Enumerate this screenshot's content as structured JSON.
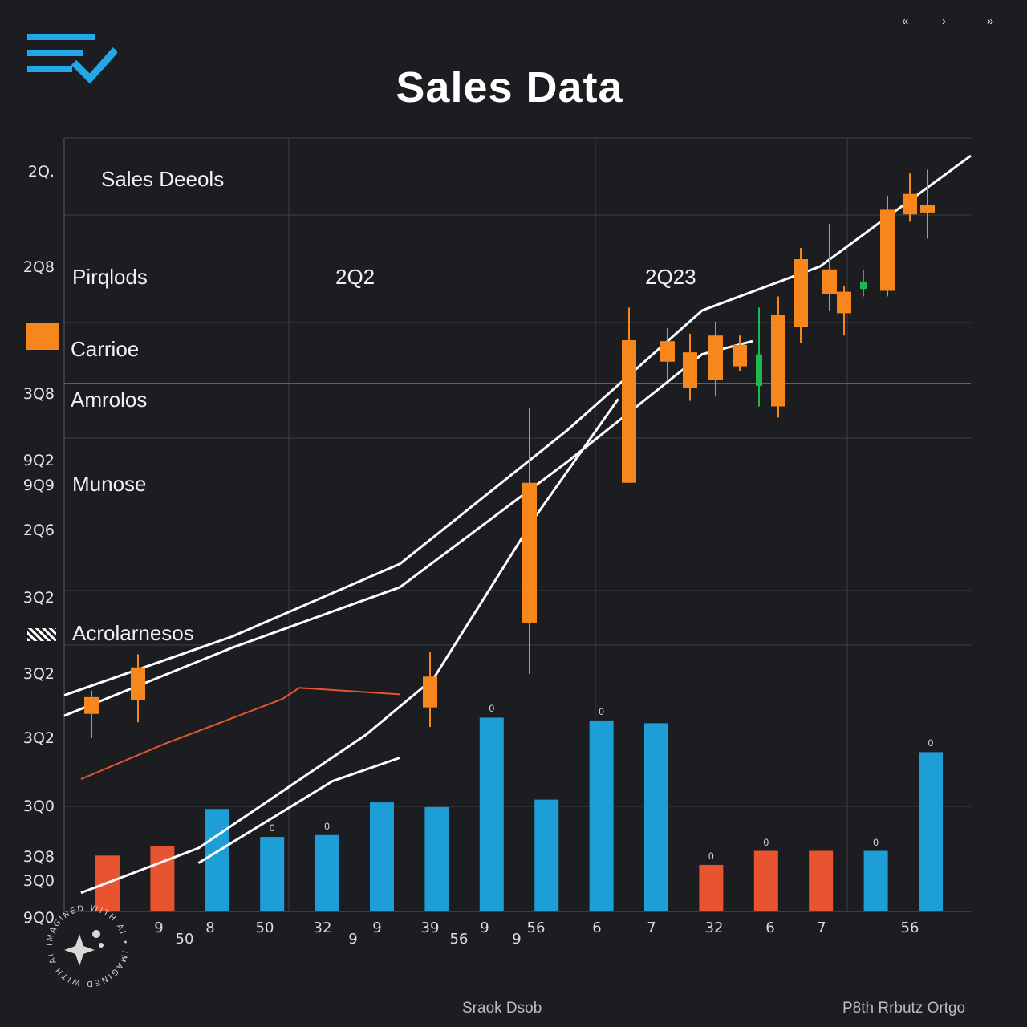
{
  "title": "Sales Data",
  "header_nav": {
    "left": "«",
    "center": "›",
    "right": "»"
  },
  "colors": {
    "background": "#1b1d20",
    "bar_blue": "#1e9ed6",
    "bar_red": "#e8542f",
    "candle_orange": "#f7861c",
    "candle_green": "#1fb84a",
    "line_white": "#ffffff",
    "line_red": "#e8542f",
    "logo_blue": "#22a7e8"
  },
  "table": {
    "rows": [
      {
        "label": "Sales Deeols"
      },
      {
        "label": "Pirqlods"
      },
      {
        "label": "Carrioe",
        "icon": "orange-swatch-icon"
      },
      {
        "label": "Amrolos"
      },
      {
        "label": "Munose"
      },
      {
        "label": "Acrolarnesos",
        "icon": "striped-swatch-icon"
      }
    ],
    "years": [
      "2Q2",
      "2Q23"
    ]
  },
  "y_ticks": [
    "2Q.",
    "2Q8",
    "3Q8",
    "9Q2",
    "9Q9",
    "2Q6",
    "3Q2",
    "3Q2",
    "3Q2",
    "3Q0",
    "3Q8",
    "3Q0",
    "9Q0"
  ],
  "footer": {
    "left": "Sraok Dsob",
    "right": "P8th Rrbutz Ortgo"
  },
  "watermark_text": "IMAGINED WITH AI",
  "chart_data": {
    "type": "bar",
    "title": "Sales Data",
    "xlabel": "",
    "ylabel": "",
    "x_tick_labels": [
      "9",
      "8",
      "50",
      "32",
      "9",
      "39",
      "9",
      "56",
      "6",
      "7",
      "32",
      "6",
      "7",
      "50",
      "9",
      "56",
      "9",
      "56"
    ],
    "bars": {
      "values": [
        60,
        70,
        110,
        80,
        82,
        117,
        112,
        208,
        120,
        205,
        202,
        50,
        65,
        65,
        65,
        171
      ],
      "colors": [
        "red",
        "red",
        "blue",
        "blue",
        "blue",
        "blue",
        "blue",
        "blue",
        "blue",
        "blue",
        "blue",
        "red",
        "red",
        "red",
        "blue",
        "blue"
      ],
      "top_labels": [
        "",
        "",
        "",
        "0",
        "0",
        "",
        "",
        "0",
        "",
        "0",
        "",
        "0",
        "0",
        "",
        "0",
        "0"
      ]
    },
    "candlesticks": [
      {
        "open": 230,
        "close": 212,
        "high": 237,
        "low": 186
      },
      {
        "open": 262,
        "close": 227,
        "high": 276,
        "low": 203
      },
      {
        "open": 252,
        "close": 219,
        "high": 278,
        "low": 198
      },
      {
        "open": 460,
        "close": 310,
        "high": 540,
        "low": 255
      },
      {
        "open": 613,
        "close": 460,
        "high": 648,
        "low": 460
      },
      {
        "open": 612,
        "close": 590,
        "high": 626,
        "low": 571
      },
      {
        "open": 600,
        "close": 562,
        "high": 620,
        "low": 548
      },
      {
        "open": 618,
        "close": 570,
        "high": 633,
        "low": 553
      },
      {
        "open": 608,
        "close": 585,
        "high": 618,
        "low": 580
      },
      {
        "open": 598,
        "close": 564,
        "high": 648,
        "low": 542
      },
      {
        "open": 640,
        "close": 542,
        "high": 660,
        "low": 530
      },
      {
        "open": 700,
        "close": 627,
        "high": 712,
        "low": 610
      },
      {
        "open": 689,
        "close": 663,
        "high": 738,
        "low": 645
      },
      {
        "open": 665,
        "close": 642,
        "high": 671,
        "low": 618
      },
      {
        "open": 676,
        "close": 668,
        "high": 688,
        "low": 660
      },
      {
        "open": 753,
        "close": 666,
        "high": 768,
        "low": 660
      },
      {
        "open": 770,
        "close": 748,
        "high": 792,
        "low": 740
      },
      {
        "open": 750,
        "close": 758,
        "high": 796,
        "low": 722
      }
    ],
    "trend_lines": [
      {
        "name": "",
        "color": "white",
        "points": [
          [
            0,
            232
          ],
          [
            10,
            295
          ],
          [
            20,
            373
          ],
          [
            30,
            517
          ],
          [
            38,
            645
          ],
          [
            45,
            692
          ],
          [
            54,
            811
          ]
        ]
      },
      {
        "name": "",
        "color": "white",
        "points": [
          [
            0,
            210
          ],
          [
            10,
            283
          ],
          [
            20,
            348
          ],
          [
            30,
            483
          ],
          [
            38,
            598
          ],
          [
            41,
            612
          ]
        ]
      },
      {
        "name": "",
        "color": "white",
        "points": [
          [
            1,
            20
          ],
          [
            8,
            68
          ],
          [
            18,
            190
          ],
          [
            22,
            250
          ],
          [
            28,
            422
          ],
          [
            33,
            550
          ]
        ]
      },
      {
        "name": "",
        "color": "white",
        "points": [
          [
            8,
            52
          ],
          [
            16,
            140
          ],
          [
            20,
            165
          ]
        ]
      },
      {
        "name": "",
        "color": "red",
        "points": [
          [
            1,
            142
          ],
          [
            6,
            180
          ],
          [
            13,
            228
          ],
          [
            14,
            240
          ],
          [
            20,
            233
          ]
        ]
      }
    ],
    "ylim": [
      0,
      830
    ],
    "grid": true
  }
}
